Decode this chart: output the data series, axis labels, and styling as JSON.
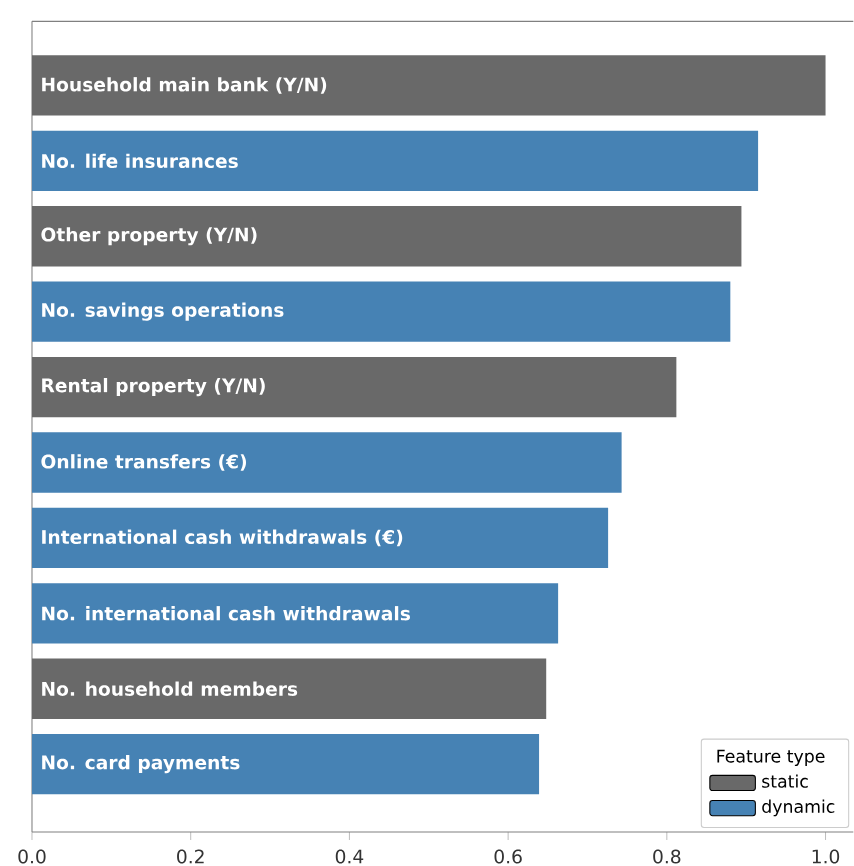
{
  "chart_data": {
    "type": "bar",
    "orientation": "horizontal",
    "legend_title": "Feature type",
    "legend": "bottom right",
    "tick_labels": "x",
    "categories": [
      "Household main bank (Y/N)",
      "No. life insurances",
      "Other property (Y/N)",
      "No. savings operations",
      "Rental property (Y/N)",
      "Online transfers (€)",
      "International cash withdrawals (€)",
      "No. international cash withdrawals",
      "No. household members",
      "No. card payments"
    ],
    "series": [
      {
        "name": "static",
        "color": "#696969",
        "values": [
          1.0,
          null,
          0.894,
          null,
          0.812,
          null,
          null,
          null,
          0.648,
          null
        ]
      },
      {
        "name": "dynamic",
        "color": "#4682b4",
        "values": [
          null,
          0.915,
          null,
          0.88,
          null,
          0.743,
          0.726,
          0.663,
          null,
          0.639
        ]
      }
    ],
    "xlim": [
      0,
      1.035
    ],
    "xticks": [
      {
        "value": 0,
        "label": "0.0"
      },
      0.2,
      0.4,
      0.6,
      0.8,
      {
        "value": 1.0,
        "label": "1.0"
      }
    ]
  }
}
